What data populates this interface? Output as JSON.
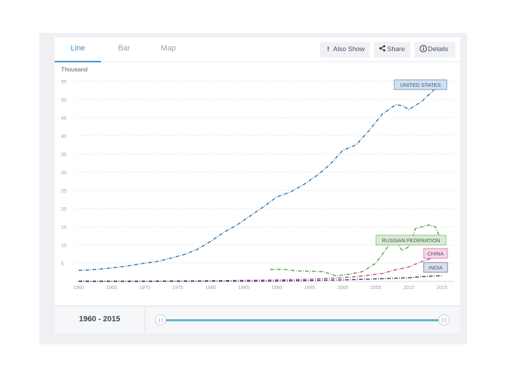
{
  "tabs": [
    {
      "label": "Line",
      "active": true
    },
    {
      "label": "Bar",
      "active": false
    },
    {
      "label": "Map",
      "active": false
    }
  ],
  "actions": {
    "also_show": {
      "icon": "exclamation-icon",
      "label": "Also Show"
    },
    "share": {
      "icon": "share-icon",
      "label": "Share"
    },
    "details": {
      "icon": "info-icon",
      "label": "Details"
    }
  },
  "footer": {
    "range_label": "1960 - 2015",
    "range_start": 1960,
    "range_end": 2015
  },
  "chart_data": {
    "type": "line",
    "ylabel": "Thousand",
    "xlabel": "",
    "xlim": [
      1960,
      2015
    ],
    "ylim": [
      0,
      55
    ],
    "x_ticks": [
      1960,
      1965,
      1970,
      1975,
      1980,
      1985,
      1990,
      1995,
      2000,
      2005,
      2010,
      2015
    ],
    "y_ticks": [
      5,
      10,
      15,
      20,
      25,
      30,
      35,
      40,
      45,
      50,
      55
    ],
    "grid": true,
    "series": [
      {
        "name": "UNITED STATES",
        "color": "#2f72a8",
        "label_fill": "#cfe1f1",
        "points": [
          [
            1960,
            3.0
          ],
          [
            1962,
            3.2
          ],
          [
            1964,
            3.5
          ],
          [
            1966,
            3.9
          ],
          [
            1968,
            4.4
          ],
          [
            1970,
            5.0
          ],
          [
            1972,
            5.5
          ],
          [
            1974,
            6.4
          ],
          [
            1976,
            7.4
          ],
          [
            1978,
            8.8
          ],
          [
            1980,
            11.0
          ],
          [
            1982,
            13.5
          ],
          [
            1984,
            15.5
          ],
          [
            1986,
            18.0
          ],
          [
            1988,
            20.5
          ],
          [
            1990,
            23.2
          ],
          [
            1992,
            24.5
          ],
          [
            1994,
            26.5
          ],
          [
            1996,
            29.0
          ],
          [
            1998,
            32.0
          ],
          [
            2000,
            36.0
          ],
          [
            2002,
            37.5
          ],
          [
            2004,
            41.5
          ],
          [
            2006,
            46.0
          ],
          [
            2008,
            48.5
          ],
          [
            2009,
            48.3
          ],
          [
            2010,
            47.2
          ],
          [
            2012,
            49.5
          ],
          [
            2014,
            53.0
          ],
          [
            2015,
            55.0
          ]
        ]
      },
      {
        "name": "RUSSIAN FEDERATION",
        "color": "#5c9e4f",
        "label_fill": "#d9ecd2",
        "points": [
          [
            1989,
            3.3
          ],
          [
            1991,
            3.3
          ],
          [
            1993,
            2.9
          ],
          [
            1995,
            2.8
          ],
          [
            1997,
            2.7
          ],
          [
            1999,
            1.5
          ],
          [
            2001,
            2.0
          ],
          [
            2003,
            2.7
          ],
          [
            2005,
            5.0
          ],
          [
            2007,
            10.0
          ],
          [
            2008,
            11.0
          ],
          [
            2009,
            8.5
          ],
          [
            2010,
            9.5
          ],
          [
            2011,
            14.5
          ],
          [
            2013,
            15.5
          ],
          [
            2014,
            15.0
          ],
          [
            2015,
            11.0
          ]
        ]
      },
      {
        "name": "CHINA",
        "color": "#c9439a",
        "label_fill": "#f6d6e7",
        "points": [
          [
            1960,
            0.1
          ],
          [
            1970,
            0.1
          ],
          [
            1980,
            0.2
          ],
          [
            1990,
            0.4
          ],
          [
            1995,
            0.6
          ],
          [
            2000,
            1.0
          ],
          [
            2003,
            1.5
          ],
          [
            2006,
            2.2
          ],
          [
            2008,
            3.2
          ],
          [
            2010,
            4.0
          ],
          [
            2012,
            5.5
          ],
          [
            2014,
            6.7
          ],
          [
            2015,
            7.5
          ]
        ]
      },
      {
        "name": "INDIA",
        "color": "#34425e",
        "label_fill": "#dcdff3",
        "points": [
          [
            1960,
            0.0
          ],
          [
            1970,
            0.0
          ],
          [
            1980,
            0.05
          ],
          [
            1990,
            0.1
          ],
          [
            2000,
            0.4
          ],
          [
            2005,
            0.7
          ],
          [
            2010,
            1.0
          ],
          [
            2012,
            1.3
          ],
          [
            2015,
            1.6
          ]
        ]
      }
    ]
  }
}
